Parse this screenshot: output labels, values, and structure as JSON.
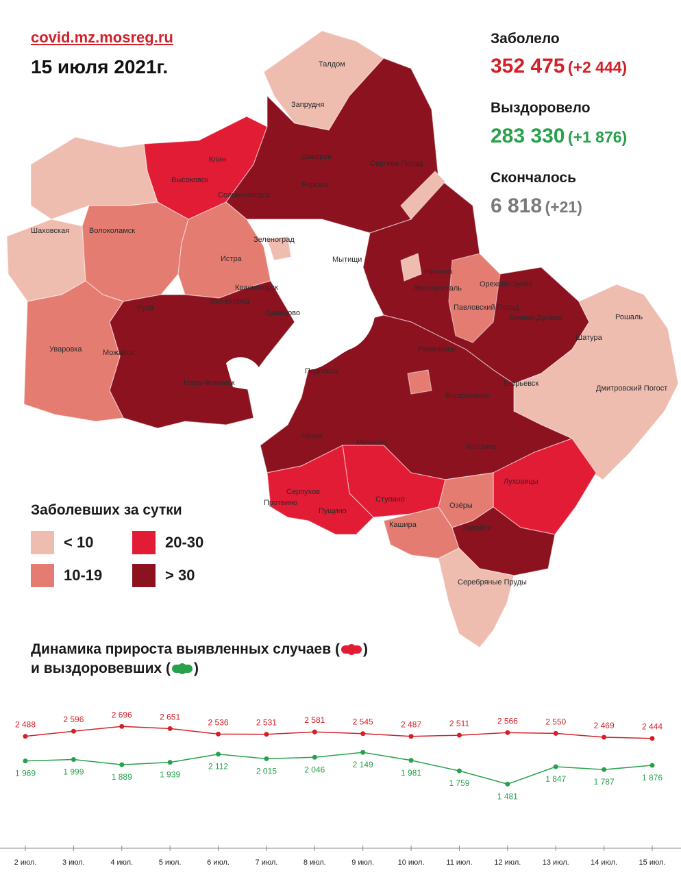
{
  "header": {
    "source": "covid.mz.mosreg.ru",
    "date": "15 июля 2021г."
  },
  "stats": {
    "sick_label": "Заболело",
    "sick_value": "352 475",
    "sick_delta": "(+2 444)",
    "recovered_label": "Выздоровело",
    "recovered_value": "283 330",
    "recovered_delta": "(+1 876)",
    "dead_label": "Скончалось",
    "dead_value": "6 818",
    "dead_delta": "(+21)"
  },
  "legend": {
    "title": "Заболевших за сутки",
    "items": [
      {
        "label": "< 10",
        "color": "#efbcb0"
      },
      {
        "label": "20-30",
        "color": "#e31c35"
      },
      {
        "label": "10-19",
        "color": "#e57c72"
      },
      {
        "label": "> 30",
        "color": "#8c1220"
      }
    ]
  },
  "map": {
    "colors": {
      "lt10": "#efbcb0",
      "c10_19": "#e57c72",
      "c20_30": "#e31c35",
      "gt30": "#8c1220"
    },
    "places": [
      "Талдом",
      "Запрудня",
      "Клин",
      "Высоковск",
      "Дмитров",
      "Сергиев Посад",
      "Яхрома",
      "Солнечногорск",
      "Шаховская",
      "Волоколамск",
      "Зеленоград",
      "Истра",
      "Мытищи",
      "Ногинск",
      "Электросталь",
      "Орехово-Зуево",
      "Красногорск",
      "Звенигород",
      "Руза",
      "Одинцово",
      "Павловский Посад",
      "Ликино-Дулёво",
      "Рошаль",
      "Шатура",
      "Уваровка",
      "Можайск",
      "Раменское",
      "Наро-Фоминск",
      "Подольск",
      "Егорьевск",
      "Дмитровский Погост",
      "Воскресенск",
      "Чехов",
      "Михнево",
      "Коломна",
      "Серпухов",
      "Пущино",
      "Ступино",
      "Луховицы",
      "Озёры",
      "Кашира",
      "Зарайск",
      "Серебряные Пруды",
      "Протвино"
    ]
  },
  "chart_title": {
    "line1_text": "Динамика прироста выявленных случаев (",
    "line1_end": ")",
    "line2_text": "и выздоровевших (",
    "line2_end": ")"
  },
  "chart_data": {
    "type": "line",
    "categories": [
      "2 июл.",
      "3 июл.",
      "4 июл.",
      "5 июл.",
      "6 июл.",
      "7 июл.",
      "8 июл.",
      "9 июл.",
      "10 июл.",
      "11 июл.",
      "12 июл.",
      "13 июл.",
      "14 июл.",
      "15 июл."
    ],
    "series": [
      {
        "values": [
          2488,
          2596,
          2696,
          2651,
          2536,
          2531,
          2581,
          2545,
          2487,
          2511,
          2566,
          2550,
          2469,
          2444
        ],
        "color": "#d41f26",
        "labels": [
          "2 488",
          "2 596",
          "2 696",
          "2 651",
          "2 536",
          "2 531",
          "2 581",
          "2 545",
          "2 487",
          "2 511",
          "2 566",
          "2 550",
          "2 469",
          "2 444"
        ]
      },
      {
        "values": [
          1969,
          1999,
          1889,
          1939,
          2112,
          2015,
          2046,
          2149,
          1981,
          1759,
          1481,
          1847,
          1787,
          1876
        ],
        "color": "#27a14b",
        "labels": [
          "1 969",
          "1 999",
          "1 889",
          "1 939",
          "2 112",
          "2 015",
          "2 046",
          "2 149",
          "1 981",
          "1 759",
          "1 481",
          "1 847",
          "1 787",
          "1 876"
        ]
      }
    ]
  }
}
